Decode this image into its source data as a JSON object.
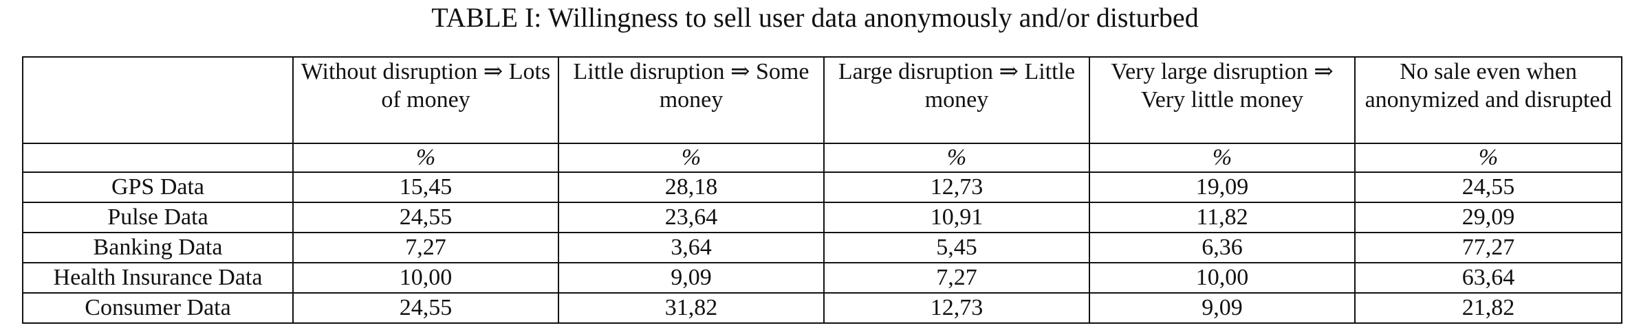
{
  "table": {
    "caption": "TABLE I: Willingness to sell user data anonymously and/or disturbed",
    "headers": [
      "",
      "Without disruption ⇒ Lots of money",
      "Little disruption ⇒ Some money",
      "Large disruption ⇒ Little money",
      "Very large disruption ⇒ Very little money",
      "No sale even when anonymized and disrupted"
    ],
    "units": [
      "",
      "%",
      "%",
      "%",
      "%",
      "%"
    ],
    "rows": [
      {
        "label": "GPS Data",
        "values": [
          "15,45",
          "28,18",
          "12,73",
          "19,09",
          "24,55"
        ]
      },
      {
        "label": "Pulse Data",
        "values": [
          "24,55",
          "23,64",
          "10,91",
          "11,82",
          "29,09"
        ]
      },
      {
        "label": "Banking Data",
        "values": [
          "7,27",
          "3,64",
          "5,45",
          "6,36",
          "77,27"
        ]
      },
      {
        "label": "Health Insurance Data",
        "values": [
          "10,00",
          "9,09",
          "7,27",
          "10,00",
          "63,64"
        ]
      },
      {
        "label": "Consumer Data",
        "values": [
          "24,55",
          "31,82",
          "12,73",
          "9,09",
          "21,82"
        ]
      }
    ]
  }
}
